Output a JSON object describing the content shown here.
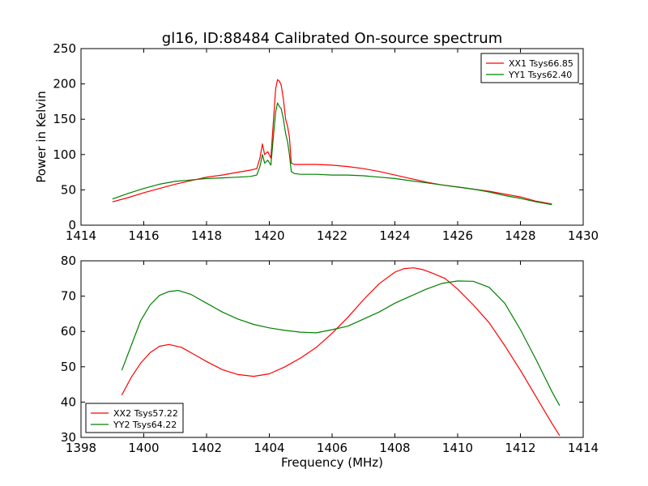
{
  "figure": {
    "title": "gl16, ID:88484 Calibrated On-source spectrum"
  },
  "chart_data": [
    {
      "type": "line",
      "xlabel": "",
      "ylabel": "Power in Kelvin",
      "xlim": [
        1414,
        1430
      ],
      "ylim": [
        0,
        250
      ],
      "xticks": [
        "1414",
        "1416",
        "1418",
        "1420",
        "1422",
        "1424",
        "1426",
        "1428",
        "1430"
      ],
      "yticks": [
        "0",
        "50",
        "100",
        "150",
        "200",
        "250"
      ],
      "legend": "top-right",
      "series": [
        {
          "name": "XX1 Tsys66.85",
          "color": "#ff0000",
          "x": [
            1415.0,
            1415.5,
            1416.0,
            1416.5,
            1417.0,
            1417.5,
            1418.0,
            1418.5,
            1419.0,
            1419.4,
            1419.6,
            1419.7,
            1419.78,
            1419.85,
            1419.95,
            1420.05,
            1420.12,
            1420.2,
            1420.26,
            1420.32,
            1420.38,
            1420.45,
            1420.52,
            1420.58,
            1420.64,
            1420.7,
            1420.8,
            1421.0,
            1421.5,
            1422.0,
            1422.5,
            1423.0,
            1423.5,
            1424.0,
            1424.5,
            1425.0,
            1425.5,
            1426.0,
            1426.5,
            1427.0,
            1427.5,
            1428.0,
            1428.5,
            1429.0
          ],
          "y": [
            33,
            39,
            46,
            52,
            58,
            63,
            68,
            71,
            75,
            78,
            80,
            95,
            115,
            100,
            104,
            95,
            140,
            193,
            206,
            204,
            198,
            178,
            150,
            140,
            125,
            88,
            86,
            86,
            86,
            85,
            83,
            80,
            76,
            71,
            66,
            61,
            57,
            54,
            51,
            48,
            44,
            40,
            34,
            30
          ]
        },
        {
          "name": "YY1 Tsys62.40",
          "color": "#008000",
          "x": [
            1415.0,
            1415.5,
            1416.0,
            1416.5,
            1417.0,
            1417.5,
            1418.0,
            1418.5,
            1419.0,
            1419.4,
            1419.6,
            1419.7,
            1419.78,
            1419.85,
            1419.95,
            1420.05,
            1420.12,
            1420.2,
            1420.26,
            1420.32,
            1420.38,
            1420.45,
            1420.52,
            1420.58,
            1420.64,
            1420.7,
            1420.8,
            1421.0,
            1421.5,
            1422.0,
            1422.5,
            1423.0,
            1423.5,
            1424.0,
            1424.5,
            1425.0,
            1425.5,
            1426.0,
            1426.5,
            1427.0,
            1427.5,
            1428.0,
            1428.5,
            1429.0
          ],
          "y": [
            37,
            45,
            52,
            58,
            62,
            64,
            66,
            67,
            68,
            69,
            71,
            83,
            100,
            88,
            92,
            85,
            120,
            160,
            173,
            168,
            165,
            150,
            130,
            118,
            100,
            76,
            73,
            72,
            72,
            71,
            71,
            70,
            68,
            66,
            63,
            60,
            57,
            54,
            51,
            47,
            42,
            38,
            33,
            29
          ]
        }
      ]
    },
    {
      "type": "line",
      "xlabel": "Frequency (MHz)",
      "ylabel": "",
      "xlim": [
        1398,
        1414
      ],
      "ylim": [
        30,
        80
      ],
      "xticks": [
        "1398",
        "1400",
        "1402",
        "1404",
        "1406",
        "1408",
        "1410",
        "1412",
        "1414"
      ],
      "yticks": [
        "30",
        "40",
        "50",
        "60",
        "70",
        "80"
      ],
      "legend": "bottom-left",
      "series": [
        {
          "name": "XX2 Tsys57.22",
          "color": "#ff0000",
          "x": [
            1399.3,
            1399.6,
            1399.9,
            1400.2,
            1400.5,
            1400.8,
            1401.2,
            1401.6,
            1402.0,
            1402.5,
            1403.0,
            1403.5,
            1404.0,
            1404.5,
            1405.0,
            1405.5,
            1406.0,
            1406.5,
            1407.0,
            1407.5,
            1408.0,
            1408.3,
            1408.6,
            1408.9,
            1409.2,
            1409.6,
            1410.0,
            1410.5,
            1411.0,
            1411.5,
            1412.0,
            1412.5,
            1413.0,
            1413.25
          ],
          "y": [
            42,
            47,
            51,
            54,
            55.8,
            56.3,
            55.5,
            53.5,
            51.5,
            49.2,
            47.8,
            47.3,
            48,
            50,
            52.5,
            55.5,
            59.5,
            64,
            69,
            73.5,
            76.8,
            77.8,
            78,
            77.5,
            76.5,
            75,
            72,
            67.5,
            62.5,
            56,
            49,
            41.5,
            34,
            30.5
          ]
        },
        {
          "name": "YY2 Tsys64.22",
          "color": "#008000",
          "x": [
            1399.3,
            1399.6,
            1399.9,
            1400.2,
            1400.5,
            1400.8,
            1401.1,
            1401.5,
            1402.0,
            1402.5,
            1403.0,
            1403.5,
            1404.0,
            1404.5,
            1405.0,
            1405.5,
            1406.0,
            1406.5,
            1407.0,
            1407.5,
            1408.0,
            1408.5,
            1409.0,
            1409.5,
            1410.0,
            1410.5,
            1411.0,
            1411.5,
            1412.0,
            1412.5,
            1413.0,
            1413.25
          ],
          "y": [
            49,
            56,
            63,
            67.5,
            70.2,
            71.3,
            71.6,
            70.5,
            68,
            65.5,
            63.5,
            62,
            61,
            60.3,
            59.8,
            59.6,
            60.5,
            61.5,
            63.5,
            65.5,
            68,
            70,
            72,
            73.6,
            74.3,
            74.2,
            72.5,
            68,
            60.5,
            52,
            43,
            39
          ]
        }
      ]
    }
  ]
}
